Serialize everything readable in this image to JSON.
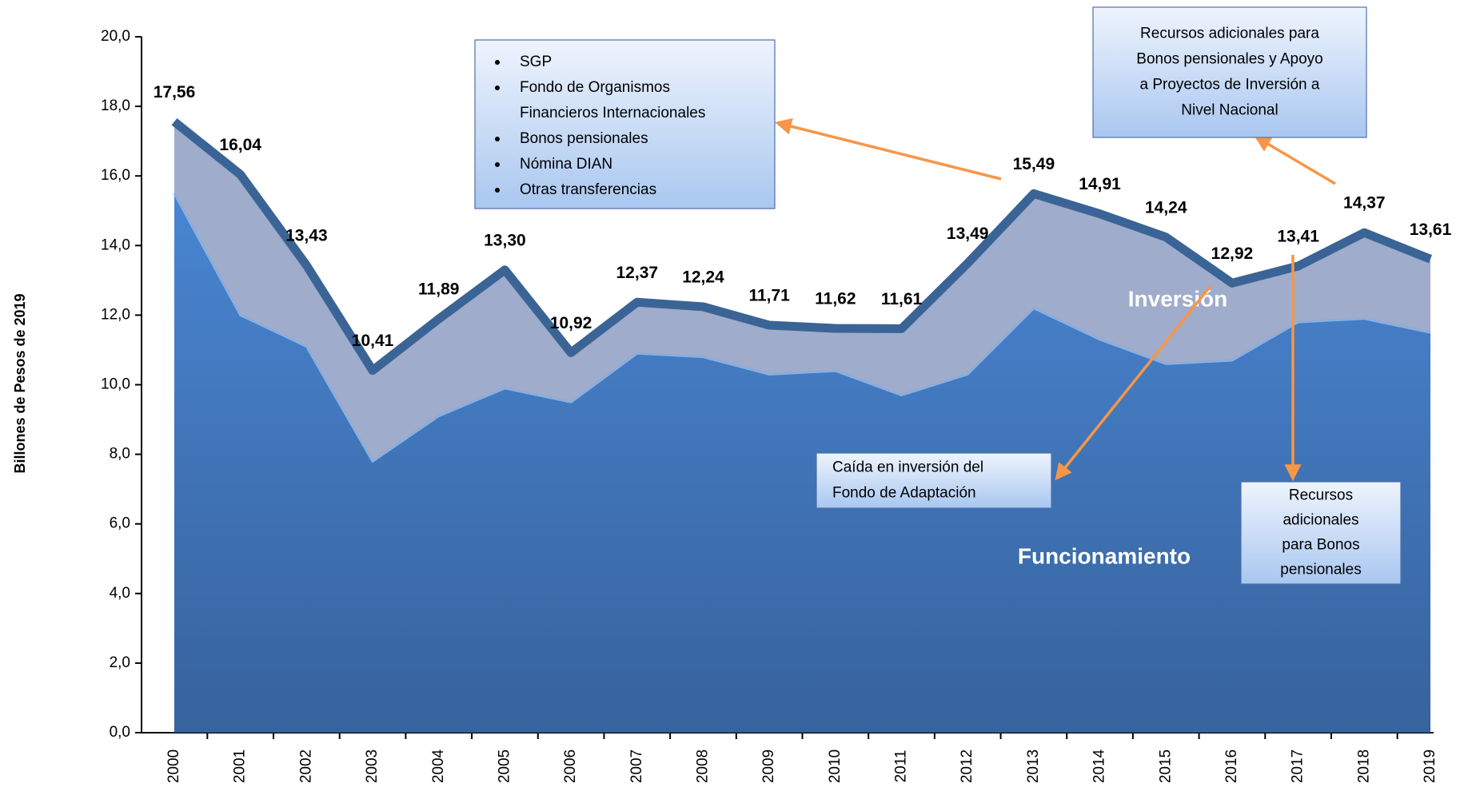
{
  "chart_data": {
    "type": "stacked_area",
    "ylabel": "Billones de Pesos de 2019",
    "categories": [
      "2000",
      "2001",
      "2002",
      "2003",
      "2004",
      "2005",
      "2006",
      "2007",
      "2008",
      "2009",
      "2010",
      "2011",
      "2012",
      "2013",
      "2014",
      "2015",
      "2016",
      "2017",
      "2018",
      "2019"
    ],
    "series": [
      {
        "name": "Funcionamiento",
        "color": "#3a70b8",
        "values": [
          15.5,
          12.0,
          11.1,
          7.8,
          9.1,
          9.9,
          9.5,
          10.9,
          10.8,
          10.3,
          10.4,
          9.7,
          10.3,
          12.2,
          11.3,
          10.6,
          10.7,
          11.8,
          11.9,
          11.5
        ]
      },
      {
        "name": "Inversión",
        "color": "#9aa8c8",
        "values": [
          2.06,
          4.04,
          2.33,
          2.61,
          2.79,
          3.4,
          1.42,
          1.47,
          1.44,
          1.41,
          1.22,
          1.91,
          3.19,
          3.29,
          3.61,
          3.64,
          2.22,
          1.61,
          2.47,
          2.11
        ]
      }
    ],
    "totals": {
      "color": "#3b6496",
      "values": [
        17.56,
        16.04,
        13.43,
        10.41,
        11.89,
        13.3,
        10.92,
        12.37,
        12.24,
        11.71,
        11.62,
        11.61,
        13.49,
        15.49,
        14.91,
        14.24,
        12.92,
        13.41,
        14.37,
        13.61
      ],
      "value_labels": [
        "17,56",
        "16,04",
        "13,43",
        "10,41",
        "11,89",
        "13,30",
        "10,92",
        "12,37",
        "12,24",
        "11,71",
        "11,62",
        "11,61",
        "13,49",
        "15,49",
        "14,91",
        "14,24",
        "12,92",
        "13,41",
        "14,37",
        "13,61"
      ]
    },
    "ylim": [
      0,
      20
    ],
    "yticks": [
      {
        "value": 0,
        "label": "0,0"
      },
      {
        "value": 2,
        "label": "2,0"
      },
      {
        "value": 4,
        "label": "4,0"
      },
      {
        "value": 6,
        "label": "6,0"
      },
      {
        "value": 8,
        "label": "8,0"
      },
      {
        "value": 10,
        "label": "10,0"
      },
      {
        "value": 12,
        "label": "12,0"
      },
      {
        "value": 14,
        "label": "14,0"
      },
      {
        "value": 16,
        "label": "16,0"
      },
      {
        "value": 18,
        "label": "18,0"
      },
      {
        "value": 20,
        "label": "20,0"
      }
    ],
    "annotations": [
      {
        "items": [
          [
            "SGP"
          ],
          [
            "Fondo de Organismos",
            "Financieros Internacionales"
          ],
          [
            "Bonos pensionales"
          ],
          [
            "Nómina DIAN"
          ],
          [
            "Otras transferencias"
          ]
        ]
      },
      {
        "lines": [
          "Recursos adicionales para",
          "Bonos pensionales y Apoyo",
          "a Proyectos de Inversión a",
          "Nivel Nacional"
        ]
      },
      {
        "lines": [
          "Caída en inversión del",
          "Fondo de Adaptación"
        ]
      },
      {
        "lines": [
          "Recursos",
          "adicionales",
          "para Bonos",
          "pensionales"
        ]
      }
    ]
  }
}
